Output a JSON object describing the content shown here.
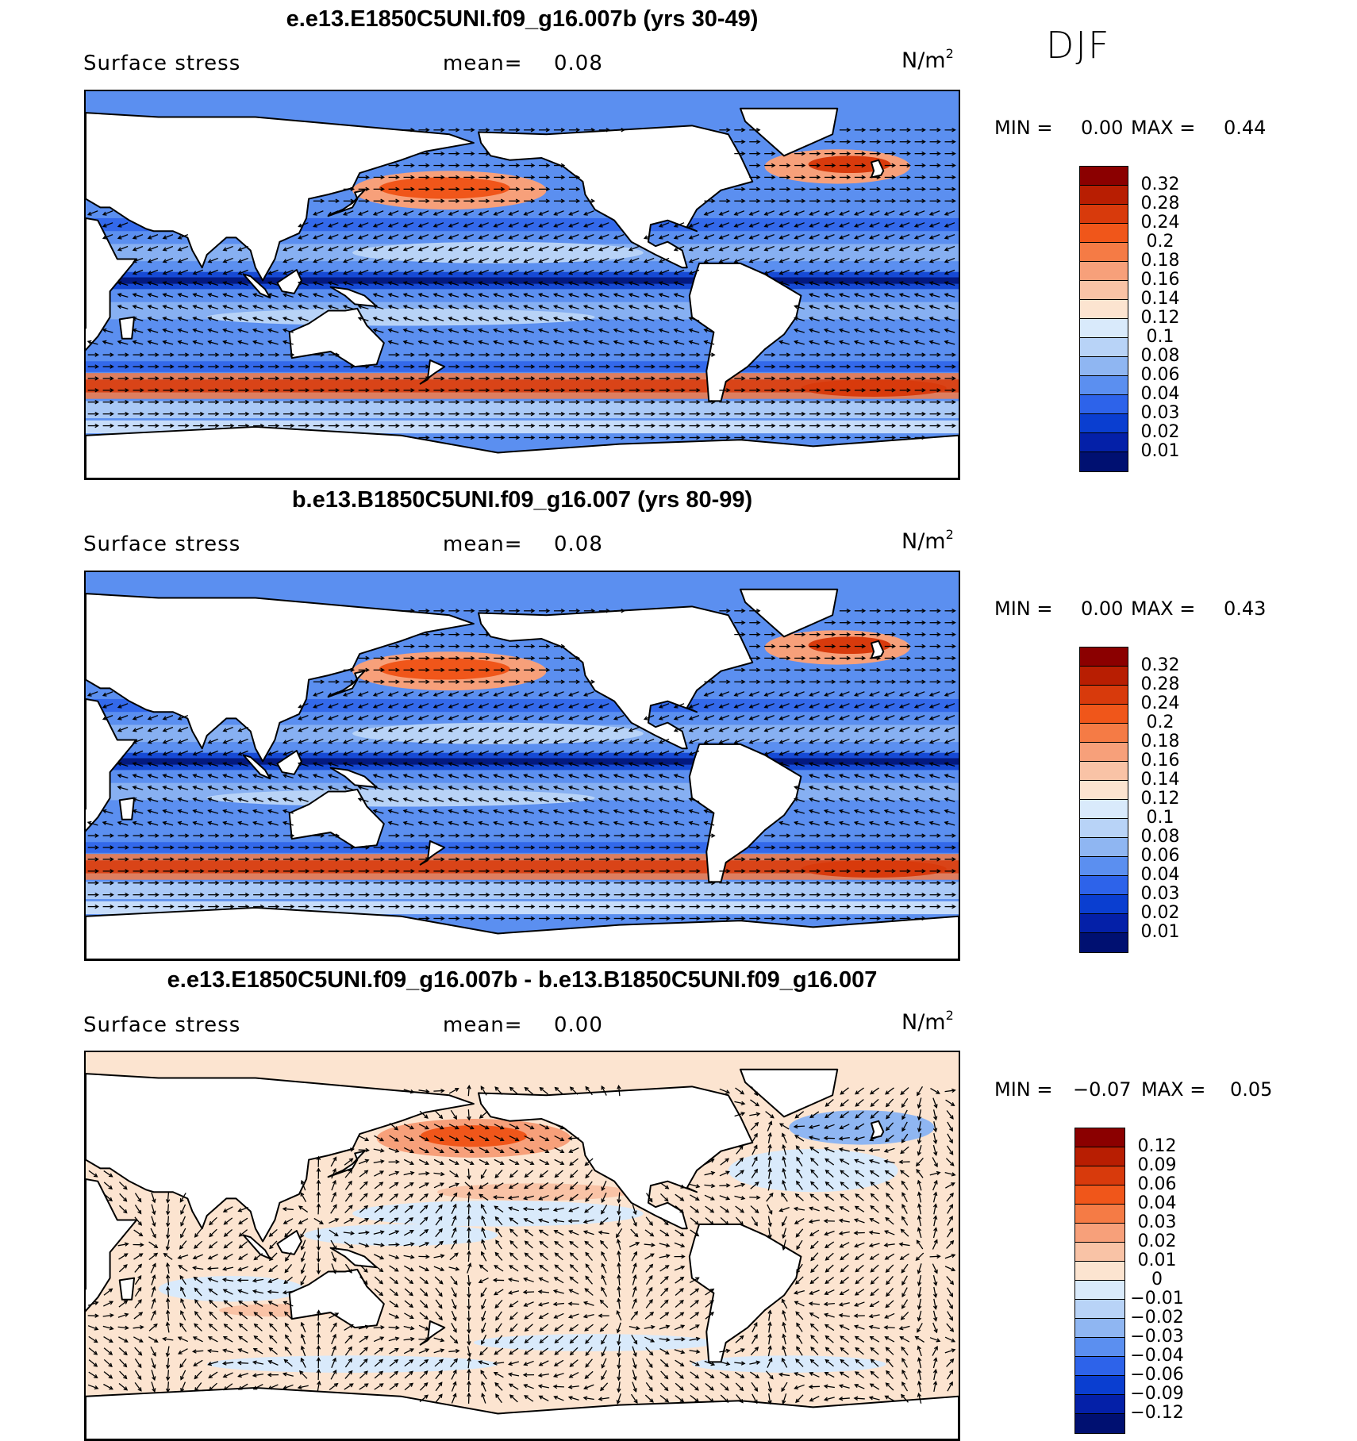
{
  "season": "DJF",
  "icons": {
    "panel_maps": "world-map-vector-field"
  },
  "panels": [
    {
      "title": "e.e13.E1850C5UNI.f09_g16.007b (yrs 30-49)",
      "variable": "Surface stress",
      "mean_label": "mean=",
      "mean_value": "0.08",
      "units_base": "N/m",
      "units_exp": "2",
      "min_label": "MIN =",
      "min_value": "0.00",
      "max_label": "MAX =",
      "max_value": "0.44",
      "kind": "absolute",
      "colorbar": {
        "labels": [
          "0.32",
          "0.28",
          "0.24",
          "0.2",
          "0.18",
          "0.16",
          "0.14",
          "0.12",
          "0.1",
          "0.08",
          "0.06",
          "0.04",
          "0.03",
          "0.02",
          "0.01"
        ],
        "colors": [
          "#8b0000",
          "#b81e02",
          "#d83a0c",
          "#f0561a",
          "#f57b45",
          "#f7a07a",
          "#f9c3a6",
          "#fce4d0",
          "#d9eafb",
          "#b8d3f7",
          "#8fb6f2",
          "#5b8ff0",
          "#2d63ea",
          "#0a3ed0",
          "#0420a8",
          "#001071"
        ]
      }
    },
    {
      "title": "b.e13.B1850C5UNI.f09_g16.007 (yrs 80-99)",
      "variable": "Surface stress",
      "mean_label": "mean=",
      "mean_value": "0.08",
      "units_base": "N/m",
      "units_exp": "2",
      "min_label": "MIN =",
      "min_value": "0.00",
      "max_label": "MAX =",
      "max_value": "0.43",
      "kind": "absolute",
      "colorbar": {
        "labels": [
          "0.32",
          "0.28",
          "0.24",
          "0.2",
          "0.18",
          "0.16",
          "0.14",
          "0.12",
          "0.1",
          "0.08",
          "0.06",
          "0.04",
          "0.03",
          "0.02",
          "0.01"
        ],
        "colors": [
          "#8b0000",
          "#b81e02",
          "#d83a0c",
          "#f0561a",
          "#f57b45",
          "#f7a07a",
          "#f9c3a6",
          "#fce4d0",
          "#d9eafb",
          "#b8d3f7",
          "#8fb6f2",
          "#5b8ff0",
          "#2d63ea",
          "#0a3ed0",
          "#0420a8",
          "#001071"
        ]
      }
    },
    {
      "title": "e.e13.E1850C5UNI.f09_g16.007b - b.e13.B1850C5UNI.f09_g16.007",
      "variable": "Surface stress",
      "mean_label": "mean=",
      "mean_value": "0.00",
      "units_base": "N/m",
      "units_exp": "2",
      "min_label": "MIN =",
      "min_value": "−0.07",
      "max_label": "MAX =",
      "max_value": "0.05",
      "kind": "difference",
      "colorbar": {
        "labels": [
          "0.12",
          "0.09",
          "0.06",
          "0.04",
          "0.03",
          "0.02",
          "0.01",
          "0",
          "−0.01",
          "−0.02",
          "−0.03",
          "−0.04",
          "−0.06",
          "−0.09",
          "−0.12"
        ],
        "colors": [
          "#8b0000",
          "#b81e02",
          "#d83a0c",
          "#f0561a",
          "#f57b45",
          "#f7a07a",
          "#f9c3a6",
          "#fce4d0",
          "#d9eafb",
          "#b8d3f7",
          "#8fb6f2",
          "#5b8ff0",
          "#2d63ea",
          "#0a3ed0",
          "#0420a8",
          "#001071"
        ]
      }
    }
  ]
}
